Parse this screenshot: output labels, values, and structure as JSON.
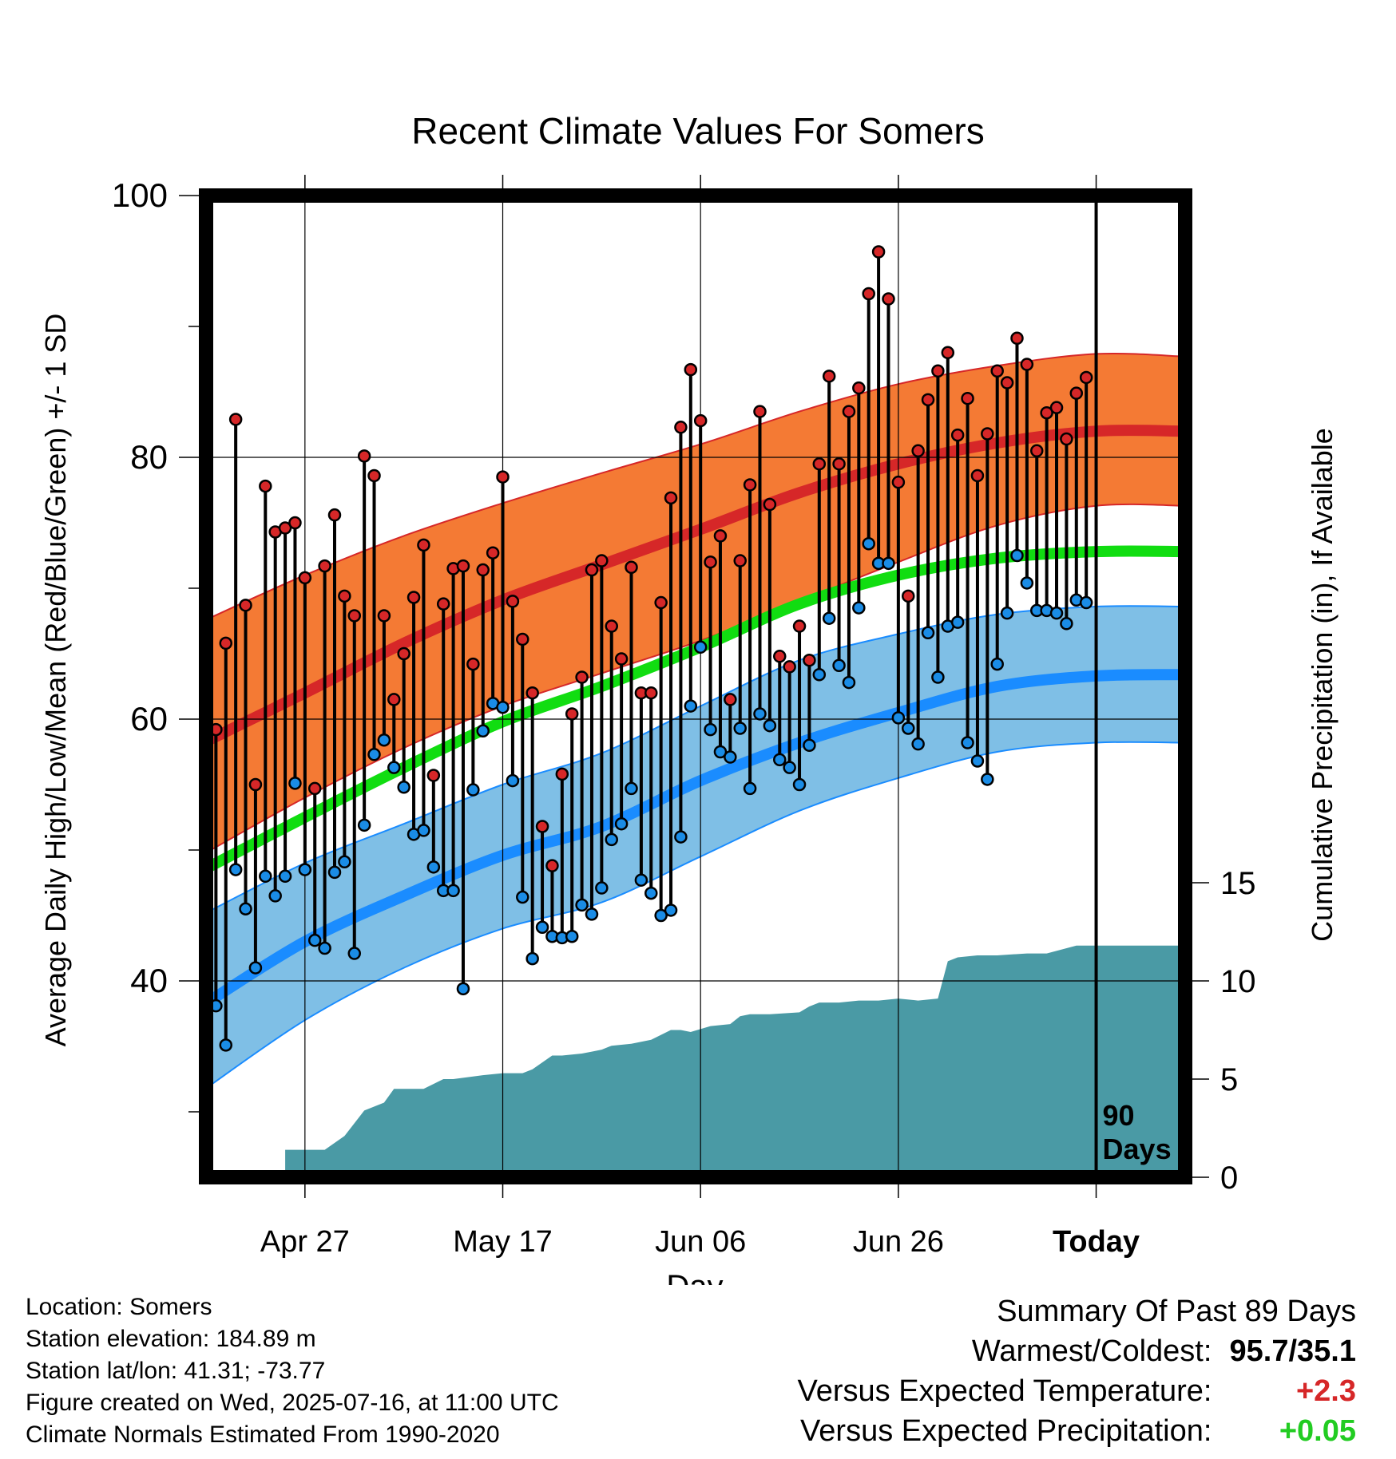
{
  "colors": {
    "high_band": "#f47a34",
    "high_line": "#d62728",
    "mean_line": "#11dd11",
    "low_band": "#7fbfe6",
    "low_line": "#1a8cff",
    "precip": "#4a9aa5",
    "high_dot": "#d62728",
    "low_dot": "#1a8ce6",
    "temp_positive": "#d62728",
    "precip_positive": "#22cc22"
  },
  "chart_data": {
    "type": "line",
    "title": "Recent Climate Values For Somers",
    "xlabel": "Day",
    "ylabel": "Average Daily High/Low/Mean (Red/Blue/Green) +/- 1 SD",
    "y2label": "Cumulative Precipitation (in), If Available",
    "ylim": [
      25,
      100
    ],
    "y2lim": [
      0,
      50
    ],
    "xlim": [
      -90,
      9
    ],
    "yticks": [
      "100",
      "80",
      "60",
      "40"
    ],
    "y2ticks": [
      "0",
      "5",
      "10",
      "15"
    ],
    "xticks": [
      {
        "day": -80,
        "label": "Apr 27"
      },
      {
        "day": -60,
        "label": "May 17"
      },
      {
        "day": -40,
        "label": "Jun 06"
      },
      {
        "day": -20,
        "label": "Jun 26"
      },
      {
        "day": 0,
        "label": "Today"
      }
    ],
    "today_marker": "90\nDays",
    "grid": true,
    "normals": {
      "day": [
        -90,
        -80,
        -70,
        -60,
        -50,
        -40,
        -30,
        -20,
        -10,
        0,
        9
      ],
      "high_mean": [
        58.3,
        62.0,
        65.8,
        69.1,
        71.8,
        74.5,
        77.3,
        79.5,
        81.1,
        82.0,
        82.0
      ],
      "high_sd_low": [
        49.8,
        54.0,
        57.8,
        61.0,
        63.5,
        66.0,
        69.0,
        72.0,
        74.8,
        76.3,
        76.3
      ],
      "high_sd_high": [
        67.6,
        71.0,
        74.0,
        76.5,
        78.8,
        81.0,
        83.5,
        85.6,
        87.0,
        87.9,
        87.7
      ],
      "mean": [
        48.6,
        52.5,
        56.3,
        59.8,
        62.5,
        65.5,
        68.8,
        71.0,
        72.3,
        72.8,
        72.8
      ],
      "low_mean": [
        38.3,
        43.0,
        46.5,
        49.6,
        51.8,
        55.3,
        58.2,
        60.5,
        62.5,
        63.3,
        63.4
      ],
      "low_sd_low": [
        31.8,
        37.0,
        41.0,
        44.0,
        46.0,
        49.5,
        53.0,
        55.5,
        57.5,
        58.2,
        58.2
      ],
      "low_sd_high": [
        45.2,
        49.0,
        52.0,
        55.0,
        57.4,
        61.0,
        64.5,
        66.5,
        68.0,
        68.6,
        68.6
      ]
    },
    "series": [
      {
        "name": "High",
        "values": [
          59.2,
          65.8,
          82.9,
          68.7,
          55.0,
          77.8,
          74.3,
          74.6,
          75.0,
          70.8,
          54.7,
          71.7,
          75.6,
          69.4,
          67.9,
          80.1,
          78.6,
          67.9,
          61.5,
          65.0,
          69.3,
          73.3,
          55.7,
          68.8,
          71.5,
          71.7,
          64.2,
          71.4,
          72.7,
          78.5,
          69.0,
          66.1,
          62.0,
          51.8,
          48.8,
          55.8,
          60.4,
          63.2,
          71.4,
          72.1,
          67.1,
          64.6,
          71.6,
          62.0,
          62.0,
          68.9,
          76.9,
          82.3,
          86.7,
          82.8,
          72.0,
          74.0,
          61.5,
          72.1,
          77.9,
          83.5,
          76.4,
          64.8,
          64.0,
          67.1,
          64.5,
          79.5,
          86.2,
          79.5,
          83.5,
          85.3,
          92.5,
          95.7,
          92.1,
          78.1,
          69.4,
          80.5,
          84.4,
          86.6,
          88.0,
          81.7,
          84.5,
          78.6,
          81.8,
          86.6,
          85.7,
          89.1,
          87.1,
          80.5,
          83.4,
          83.8,
          81.4,
          84.9,
          86.1
        ]
      },
      {
        "name": "Low",
        "values": [
          38.1,
          35.1,
          48.5,
          45.5,
          41.0,
          48.0,
          46.5,
          48.0,
          55.1,
          48.5,
          43.1,
          42.5,
          48.3,
          49.1,
          42.1,
          51.9,
          57.3,
          58.4,
          56.3,
          54.8,
          51.2,
          51.5,
          48.7,
          46.9,
          46.9,
          39.4,
          54.6,
          59.1,
          61.2,
          60.9,
          55.3,
          46.4,
          41.7,
          44.1,
          43.4,
          43.3,
          43.4,
          45.8,
          45.1,
          47.1,
          50.8,
          52.0,
          54.7,
          47.7,
          46.7,
          45.0,
          45.4,
          51.0,
          61.0,
          65.5,
          59.2,
          57.5,
          57.1,
          59.3,
          54.7,
          60.4,
          59.5,
          56.9,
          56.3,
          55.0,
          58.0,
          63.4,
          67.7,
          64.1,
          62.8,
          68.5,
          73.4,
          71.9,
          71.9,
          60.1,
          59.3,
          58.1,
          66.6,
          63.2,
          67.1,
          67.4,
          58.2,
          56.8,
          55.4,
          64.2,
          68.1,
          72.5,
          70.4,
          68.3,
          68.3,
          68.1,
          67.3,
          69.1,
          68.9
        ]
      },
      {
        "name": "Cumulative Precipitation",
        "type": "area",
        "x": [
          -82,
          -78,
          -76,
          -74,
          -72,
          -71,
          -68,
          -66,
          -65,
          -62,
          -60,
          -58,
          -57,
          -55,
          -54,
          -52,
          -51,
          -50,
          -49,
          -47,
          -45,
          -43,
          -42,
          -41,
          -39,
          -37,
          -36,
          -35,
          -33,
          -30,
          -29,
          -28,
          -26,
          -24,
          -22,
          -20,
          -18,
          -16,
          -15,
          -14,
          -12,
          -10,
          -7,
          -5,
          -2,
          0,
          9
        ],
        "values": [
          1.4,
          1.4,
          2.1,
          3.4,
          3.8,
          4.5,
          4.5,
          5.0,
          5.0,
          5.2,
          5.3,
          5.3,
          5.5,
          6.2,
          6.2,
          6.3,
          6.4,
          6.5,
          6.7,
          6.8,
          7.0,
          7.5,
          7.5,
          7.4,
          7.7,
          7.8,
          8.2,
          8.3,
          8.3,
          8.4,
          8.7,
          8.9,
          8.9,
          9.0,
          9.0,
          9.1,
          9.0,
          9.1,
          11.0,
          11.2,
          11.3,
          11.3,
          11.4,
          11.4,
          11.8,
          11.8,
          11.8
        ]
      }
    ]
  },
  "info": {
    "location": "Location: Somers",
    "elevation": "Station elevation: 184.89 m",
    "latlon": "Station lat/lon: 41.31; -73.77",
    "created": "Figure created on Wed, 2025-07-16, at 11:00 UTC",
    "normals": "Climate Normals Estimated From 1990-2020"
  },
  "summary": {
    "title": "Summary Of Past 89 Days",
    "warm_label": "Warmest/Coldest:",
    "warm_value": "95.7/35.1",
    "temp_label": "Versus Expected Temperature:",
    "temp_value": "+2.3",
    "precip_label": "Versus Expected Precipitation:",
    "precip_value": "+0.05"
  }
}
